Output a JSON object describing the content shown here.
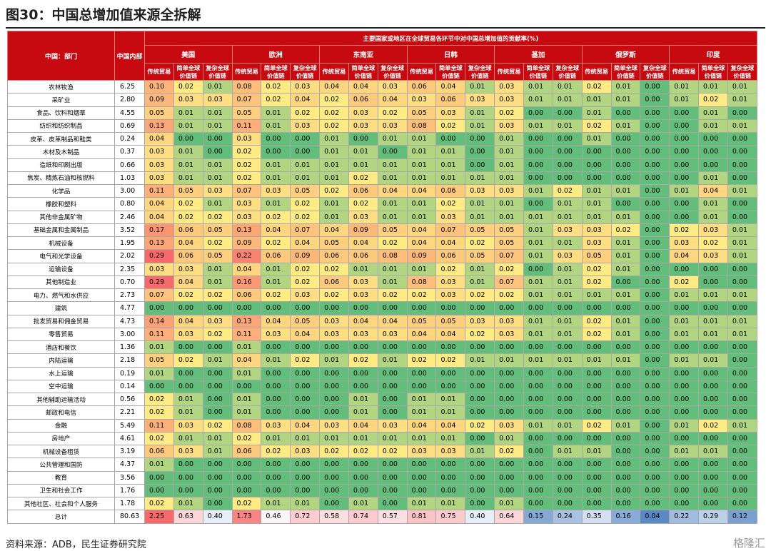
{
  "title": "图30：中国总增加值来源全拆解",
  "source": "资料来源：ADB，民生证券研究院",
  "watermark": "格隆汇",
  "table": {
    "dept_header": "中国：部门",
    "domestic_header": "中国内部",
    "group_header": "主要国家或地区在全球贸易各环节中对中国总增加值的贡献率(%)",
    "regions": [
      "美国",
      "欧洲",
      "东南亚",
      "日韩",
      "基加",
      "俄罗斯",
      "印度"
    ],
    "chain_labels": [
      "传统贸易",
      "简单全球价值链",
      "复杂全球价值链"
    ],
    "rows": [
      {
        "sector": "农林牧渔",
        "domestic": "6.25",
        "values": [
          "0.10",
          "0.02",
          "0.01",
          "0.08",
          "0.02",
          "0.03",
          "0.04",
          "0.04",
          "0.03",
          "0.06",
          "0.04",
          "0.01",
          "0.03",
          "0.01",
          "0.01",
          "0.02",
          "0.01",
          "0.00",
          "0.01",
          "0.01",
          "0.01"
        ]
      },
      {
        "sector": "采矿业",
        "domestic": "2.80",
        "values": [
          "0.09",
          "0.03",
          "0.03",
          "0.07",
          "0.02",
          "0.04",
          "0.02",
          "0.06",
          "0.04",
          "0.03",
          "0.06",
          "0.03",
          "0.03",
          "0.01",
          "0.01",
          "0.01",
          "0.01",
          "0.00",
          "0.01",
          "0.02",
          "0.01"
        ]
      },
      {
        "sector": "食品、饮料和烟草",
        "domestic": "4.55",
        "values": [
          "0.05",
          "0.01",
          "0.01",
          "0.05",
          "0.01",
          "0.02",
          "0.02",
          "0.03",
          "0.02",
          "0.05",
          "0.03",
          "0.01",
          "0.02",
          "0.00",
          "0.00",
          "0.01",
          "0.00",
          "0.00",
          "0.00",
          "0.01",
          "0.00"
        ]
      },
      {
        "sector": "纺织和纺织制品",
        "domestic": "0.69",
        "values": [
          "0.13",
          "0.01",
          "0.01",
          "0.11",
          "0.01",
          "0.03",
          "0.02",
          "0.03",
          "0.03",
          "0.08",
          "0.02",
          "0.01",
          "0.03",
          "0.01",
          "0.01",
          "0.02",
          "0.01",
          "0.00",
          "0.00",
          "0.01",
          "0.01"
        ]
      },
      {
        "sector": "皮革、皮革制品和鞋类",
        "domestic": "0.24",
        "values": [
          "0.04",
          "0.00",
          "0.00",
          "0.03",
          "0.00",
          "0.00",
          "0.01",
          "0.00",
          "0.01",
          "0.01",
          "0.00",
          "0.00",
          "0.01",
          "0.00",
          "0.00",
          "0.01",
          "0.00",
          "0.00",
          "0.00",
          "0.00",
          "0.00"
        ]
      },
      {
        "sector": "木材及木制品",
        "domestic": "0.37",
        "values": [
          "0.03",
          "0.01",
          "0.00",
          "0.02",
          "0.00",
          "0.00",
          "0.01",
          "0.01",
          "0.00",
          "0.01",
          "0.01",
          "0.00",
          "0.01",
          "0.00",
          "0.00",
          "0.00",
          "0.00",
          "0.00",
          "0.00",
          "0.00",
          "0.00"
        ]
      },
      {
        "sector": "造纸和印刷出版",
        "domestic": "0.66",
        "values": [
          "0.03",
          "0.01",
          "0.01",
          "0.02",
          "0.01",
          "0.01",
          "0.01",
          "0.01",
          "0.01",
          "0.01",
          "0.01",
          "0.00",
          "0.01",
          "0.00",
          "0.00",
          "0.00",
          "0.00",
          "0.00",
          "0.00",
          "0.00",
          "0.00"
        ]
      },
      {
        "sector": "焦炭、精炼石油和核燃料",
        "domestic": "1.03",
        "values": [
          "0.03",
          "0.01",
          "0.01",
          "0.02",
          "0.01",
          "0.01",
          "0.01",
          "0.02",
          "0.01",
          "0.01",
          "0.01",
          "0.01",
          "0.01",
          "0.00",
          "0.00",
          "0.00",
          "0.00",
          "0.00",
          "0.00",
          "0.01",
          "0.00"
        ]
      },
      {
        "sector": "化学品",
        "domestic": "3.00",
        "values": [
          "0.11",
          "0.05",
          "0.03",
          "0.07",
          "0.03",
          "0.05",
          "0.02",
          "0.06",
          "0.04",
          "0.04",
          "0.06",
          "0.03",
          "0.03",
          "0.01",
          "0.02",
          "0.01",
          "0.01",
          "0.00",
          "0.01",
          "0.04",
          "0.01"
        ]
      },
      {
        "sector": "橡胶和塑料",
        "domestic": "0.80",
        "values": [
          "0.04",
          "0.02",
          "0.01",
          "0.03",
          "0.01",
          "0.02",
          "0.01",
          "0.02",
          "0.01",
          "0.01",
          "0.02",
          "0.01",
          "0.01",
          "0.00",
          "0.01",
          "0.01",
          "0.00",
          "0.00",
          "0.00",
          "0.01",
          "0.00"
        ]
      },
      {
        "sector": "其他非金属矿物",
        "domestic": "2.46",
        "values": [
          "0.04",
          "0.02",
          "0.02",
          "0.03",
          "0.02",
          "0.02",
          "0.01",
          "0.03",
          "0.01",
          "0.01",
          "0.03",
          "0.01",
          "0.01",
          "0.01",
          "0.01",
          "0.01",
          "0.01",
          "0.00",
          "0.00",
          "0.01",
          "0.00"
        ]
      },
      {
        "sector": "基础金属和金属制品",
        "domestic": "3.52",
        "values": [
          "0.17",
          "0.06",
          "0.05",
          "0.13",
          "0.04",
          "0.07",
          "0.04",
          "0.09",
          "0.05",
          "0.04",
          "0.07",
          "0.05",
          "0.05",
          "0.01",
          "0.03",
          "0.03",
          "0.02",
          "0.00",
          "0.02",
          "0.03",
          "0.01"
        ]
      },
      {
        "sector": "机械设备",
        "domestic": "1.95",
        "values": [
          "0.13",
          "0.04",
          "0.02",
          "0.09",
          "0.02",
          "0.04",
          "0.05",
          "0.04",
          "0.02",
          "0.04",
          "0.04",
          "0.02",
          "0.05",
          "0.01",
          "0.01",
          "0.03",
          "0.01",
          "0.00",
          "0.03",
          "0.02",
          "0.01"
        ]
      },
      {
        "sector": "电气和光学设备",
        "domestic": "2.02",
        "values": [
          "0.29",
          "0.06",
          "0.05",
          "0.22",
          "0.06",
          "0.09",
          "0.06",
          "0.06",
          "0.08",
          "0.09",
          "0.06",
          "0.05",
          "0.07",
          "0.01",
          "0.03",
          "0.05",
          "0.01",
          "0.00",
          "0.04",
          "0.03",
          "0.01"
        ]
      },
      {
        "sector": "运输设备",
        "domestic": "2.35",
        "values": [
          "0.03",
          "0.03",
          "0.01",
          "0.04",
          "0.01",
          "0.02",
          "0.02",
          "0.01",
          "0.01",
          "0.01",
          "0.02",
          "0.01",
          "0.02",
          "0.00",
          "0.01",
          "0.02",
          "0.01",
          "0.00",
          "0.00",
          "0.00",
          "0.00"
        ]
      },
      {
        "sector": "其他制造业",
        "domestic": "0.70",
        "values": [
          "0.29",
          "0.04",
          "0.01",
          "0.16",
          "0.01",
          "0.02",
          "0.06",
          "0.03",
          "0.01",
          "0.08",
          "0.03",
          "0.01",
          "0.07",
          "0.01",
          "0.01",
          "0.02",
          "0.00",
          "0.00",
          "0.02",
          "0.00",
          "0.00"
        ]
      },
      {
        "sector": "电力、燃气和水供应",
        "domestic": "2.73",
        "values": [
          "0.07",
          "0.02",
          "0.02",
          "0.06",
          "0.02",
          "0.03",
          "0.02",
          "0.03",
          "0.02",
          "0.02",
          "0.03",
          "0.02",
          "0.02",
          "0.01",
          "0.01",
          "0.01",
          "0.01",
          "0.00",
          "0.01",
          "0.01",
          "0.01"
        ]
      },
      {
        "sector": "建筑",
        "domestic": "4.77",
        "values": [
          "0.00",
          "0.00",
          "0.00",
          "0.00",
          "0.00",
          "0.00",
          "0.00",
          "0.00",
          "0.00",
          "0.00",
          "0.00",
          "0.00",
          "0.00",
          "0.00",
          "0.00",
          "0.00",
          "0.00",
          "0.00",
          "0.00",
          "0.00",
          "0.00"
        ]
      },
      {
        "sector": "批发贸易和佣金贸易",
        "domestic": "4.73",
        "values": [
          "0.14",
          "0.04",
          "0.03",
          "0.13",
          "0.04",
          "0.05",
          "0.03",
          "0.04",
          "0.04",
          "0.05",
          "0.05",
          "0.03",
          "0.03",
          "0.01",
          "0.01",
          "0.02",
          "0.01",
          "0.00",
          "0.01",
          "0.01",
          "0.01"
        ]
      },
      {
        "sector": "零售贸易",
        "domestic": "3.00",
        "values": [
          "0.11",
          "0.03",
          "0.02",
          "0.11",
          "0.03",
          "0.04",
          "0.03",
          "0.03",
          "0.03",
          "0.04",
          "0.04",
          "0.02",
          "0.03",
          "0.01",
          "0.01",
          "0.02",
          "0.01",
          "0.00",
          "0.01",
          "0.01",
          "0.01"
        ]
      },
      {
        "sector": "酒店和餐饮",
        "domestic": "1.36",
        "values": [
          "0.01",
          "0.00",
          "0.00",
          "0.01",
          "0.00",
          "0.00",
          "0.00",
          "0.00",
          "0.00",
          "0.00",
          "0.00",
          "0.00",
          "0.00",
          "0.00",
          "0.00",
          "0.00",
          "0.00",
          "0.00",
          "0.00",
          "0.00",
          "0.00"
        ]
      },
      {
        "sector": "内陆运输",
        "domestic": "2.18",
        "values": [
          "0.05",
          "0.02",
          "0.01",
          "0.04",
          "0.01",
          "0.02",
          "0.01",
          "0.02",
          "0.01",
          "0.02",
          "0.02",
          "0.01",
          "0.01",
          "0.01",
          "0.01",
          "0.01",
          "0.01",
          "0.00",
          "0.01",
          "0.01",
          "0.00"
        ]
      },
      {
        "sector": "水上运输",
        "domestic": "0.19",
        "values": [
          "0.01",
          "0.00",
          "0.00",
          "0.01",
          "0.00",
          "0.00",
          "0.00",
          "0.00",
          "0.00",
          "0.00",
          "0.00",
          "0.00",
          "0.00",
          "0.00",
          "0.00",
          "0.00",
          "0.00",
          "0.00",
          "0.00",
          "0.00",
          "0.00"
        ]
      },
      {
        "sector": "空中运输",
        "domestic": "0.14",
        "values": [
          "0.00",
          "0.00",
          "0.00",
          "0.00",
          "0.00",
          "0.00",
          "0.00",
          "0.00",
          "0.00",
          "0.00",
          "0.00",
          "0.00",
          "0.00",
          "0.00",
          "0.00",
          "0.00",
          "0.00",
          "0.00",
          "0.00",
          "0.00",
          "0.00"
        ]
      },
      {
        "sector": "其他辅助运输活动",
        "domestic": "0.56",
        "values": [
          "0.02",
          "0.01",
          "0.00",
          "0.01",
          "0.00",
          "0.00",
          "0.00",
          "0.01",
          "0.00",
          "0.01",
          "0.01",
          "0.00",
          "0.00",
          "0.00",
          "0.00",
          "0.00",
          "0.00",
          "0.00",
          "0.00",
          "0.00",
          "0.00"
        ]
      },
      {
        "sector": "邮政和电信",
        "domestic": "2.21",
        "values": [
          "0.02",
          "0.01",
          "0.00",
          "0.01",
          "0.00",
          "0.00",
          "0.00",
          "0.01",
          "0.00",
          "0.01",
          "0.01",
          "0.00",
          "0.00",
          "0.00",
          "0.00",
          "0.00",
          "0.00",
          "0.00",
          "0.00",
          "0.00",
          "0.00"
        ]
      },
      {
        "sector": "金融",
        "domestic": "5.49",
        "values": [
          "0.11",
          "0.03",
          "0.02",
          "0.08",
          "0.03",
          "0.04",
          "0.03",
          "0.04",
          "0.03",
          "0.04",
          "0.04",
          "0.02",
          "0.03",
          "0.01",
          "0.01",
          "0.02",
          "0.01",
          "0.00",
          "0.01",
          "0.02",
          "0.01"
        ]
      },
      {
        "sector": "房地产",
        "domestic": "4.61",
        "values": [
          "0.02",
          "0.01",
          "0.01",
          "0.02",
          "0.01",
          "0.01",
          "0.01",
          "0.01",
          "0.01",
          "0.01",
          "0.01",
          "0.00",
          "0.01",
          "0.00",
          "0.00",
          "0.00",
          "0.00",
          "0.00",
          "0.00",
          "0.00",
          "0.00"
        ]
      },
      {
        "sector": "机械设备租赁",
        "domestic": "3.19",
        "values": [
          "0.06",
          "0.03",
          "0.01",
          "0.06",
          "0.02",
          "0.03",
          "0.02",
          "0.02",
          "0.02",
          "0.03",
          "0.03",
          "0.01",
          "0.02",
          "0.00",
          "0.01",
          "0.01",
          "0.00",
          "0.00",
          "0.01",
          "0.01",
          "0.00"
        ]
      },
      {
        "sector": "公共管理和国防",
        "domestic": "4.37",
        "values": [
          "0.01",
          "0.00",
          "0.00",
          "0.00",
          "0.00",
          "0.00",
          "0.00",
          "0.00",
          "0.00",
          "0.00",
          "0.00",
          "0.00",
          "0.00",
          "0.00",
          "0.00",
          "0.00",
          "0.00",
          "0.00",
          "0.00",
          "0.00",
          "0.00"
        ]
      },
      {
        "sector": "教育",
        "domestic": "3.56",
        "values": [
          "0.00",
          "0.00",
          "0.00",
          "0.00",
          "0.00",
          "0.00",
          "0.00",
          "0.00",
          "0.00",
          "0.00",
          "0.00",
          "0.00",
          "0.00",
          "0.00",
          "0.00",
          "0.00",
          "0.00",
          "0.00",
          "0.00",
          "0.00",
          "0.00"
        ]
      },
      {
        "sector": "卫生和社会工作",
        "domestic": "1.76",
        "values": [
          "0.00",
          "0.00",
          "0.00",
          "0.00",
          "0.00",
          "0.00",
          "0.00",
          "0.00",
          "0.00",
          "0.00",
          "0.00",
          "0.00",
          "0.00",
          "0.00",
          "0.00",
          "0.00",
          "0.00",
          "0.00",
          "0.00",
          "0.00",
          "0.00"
        ]
      },
      {
        "sector": "其他社区、社会和个人服务",
        "domestic": "1.78",
        "values": [
          "0.02",
          "0.01",
          "0.00",
          "0.02",
          "0.01",
          "0.01",
          "0.00",
          "0.01",
          "0.00",
          "0.01",
          "0.01",
          "0.00",
          "0.01",
          "0.00",
          "0.00",
          "0.00",
          "0.00",
          "0.00",
          "0.00",
          "0.00",
          "0.00"
        ]
      }
    ],
    "total": {
      "sector": "总计",
      "domestic": "80.63",
      "values": [
        "2.25",
        "0.63",
        "0.40",
        "1.73",
        "0.46",
        "0.72",
        "0.58",
        "0.74",
        "0.57",
        "0.81",
        "0.75",
        "0.40",
        "0.64",
        "0.15",
        "0.24",
        "0.35",
        "0.16",
        "0.04",
        "0.22",
        "0.29",
        "0.12"
      ]
    },
    "colors": {
      "header_bg": "#c70a10",
      "header_text": "#ffffff",
      "scale_high": "#f8696b",
      "scale_mid": "#ffeb84",
      "scale_low": "#63be7b",
      "total_low": "#5a8ac6",
      "total_high": "#f8696b",
      "total_mid": "#fcfcff"
    }
  }
}
